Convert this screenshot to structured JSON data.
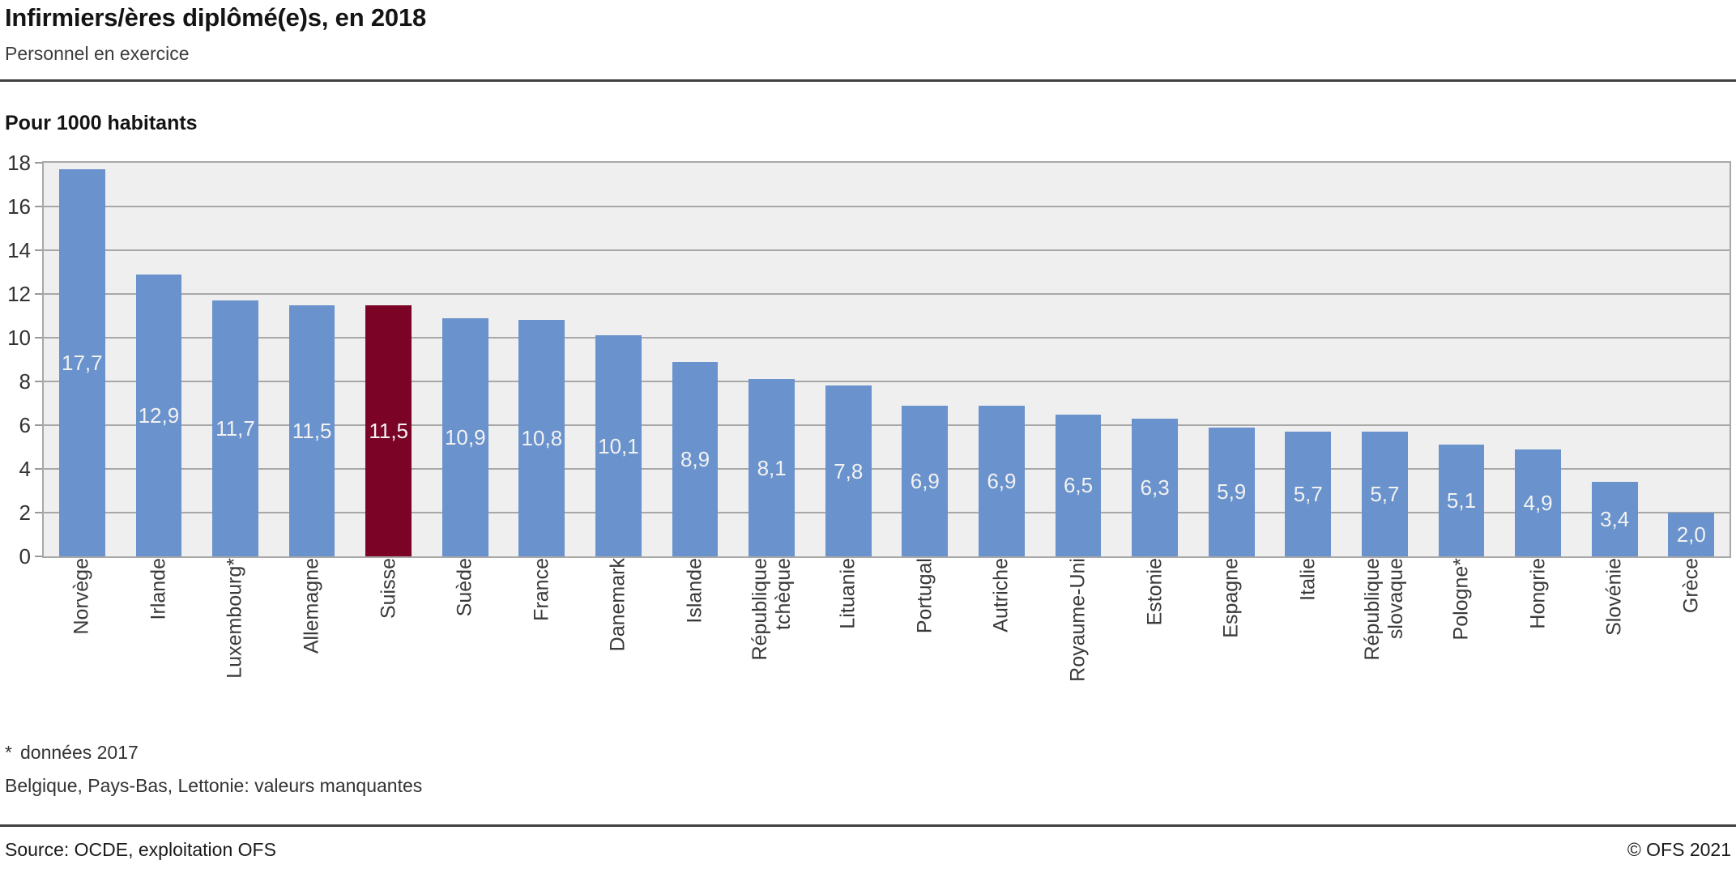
{
  "header": {
    "title": "Infirmiers/ères diplômé(e)s, en 2018",
    "subtitle": "Personnel en exercice"
  },
  "chart_data": {
    "type": "bar",
    "title": "Infirmiers/ères diplômé(e)s, en 2018",
    "subtitle": "Personnel en exercice",
    "ylabel": "Pour 1000 habitants",
    "xlabel": "",
    "categories": [
      "Norvège",
      "Irlande",
      "Luxembourg*",
      "Allemagne",
      "Suisse",
      "Suède",
      "France",
      "Danemark",
      "Islande",
      "République\ntchèque",
      "Lituanie",
      "Portugal",
      "Autriche",
      "Royaume-Uni",
      "Estonie",
      "Espagne",
      "Italie",
      "République\nslovaque",
      "Pologne*",
      "Hongrie",
      "Slovénie",
      "Grèce"
    ],
    "values": [
      17.7,
      12.9,
      11.7,
      11.5,
      11.5,
      10.9,
      10.8,
      10.1,
      8.9,
      8.1,
      7.8,
      6.9,
      6.9,
      6.5,
      6.3,
      5.9,
      5.7,
      5.7,
      5.1,
      4.9,
      3.4,
      2.0
    ],
    "value_labels": [
      "17,7",
      "12,9",
      "11,7",
      "11,5",
      "11,5",
      "10,9",
      "10,8",
      "10,1",
      "8,9",
      "8,1",
      "7,8",
      "6,9",
      "6,9",
      "6,5",
      "6,3",
      "5,9",
      "5,7",
      "5,7",
      "5,1",
      "4,9",
      "3,4",
      "2,0"
    ],
    "highlight_category": "Suisse",
    "highlight_index": 4,
    "ylim": [
      0,
      18
    ],
    "yticks": [
      0,
      2,
      4,
      6,
      8,
      10,
      12,
      14,
      16,
      18
    ],
    "grid": true,
    "legend": "none",
    "colors": {
      "bar": "#6a92cc",
      "highlight": "#7b0426",
      "plot_bg": "#efefef",
      "gridline": "#a8a8a8",
      "value_label": "#f2f2f2"
    }
  },
  "unit_label": "Pour 1000 habitants",
  "footnotes": {
    "marker": "*",
    "note1": "données 2017",
    "note2": "Belgique, Pays-Bas, Lettonie: valeurs manquantes"
  },
  "footer": {
    "source": "Source: OCDE, exploitation OFS",
    "copyright": "© OFS 2021"
  }
}
